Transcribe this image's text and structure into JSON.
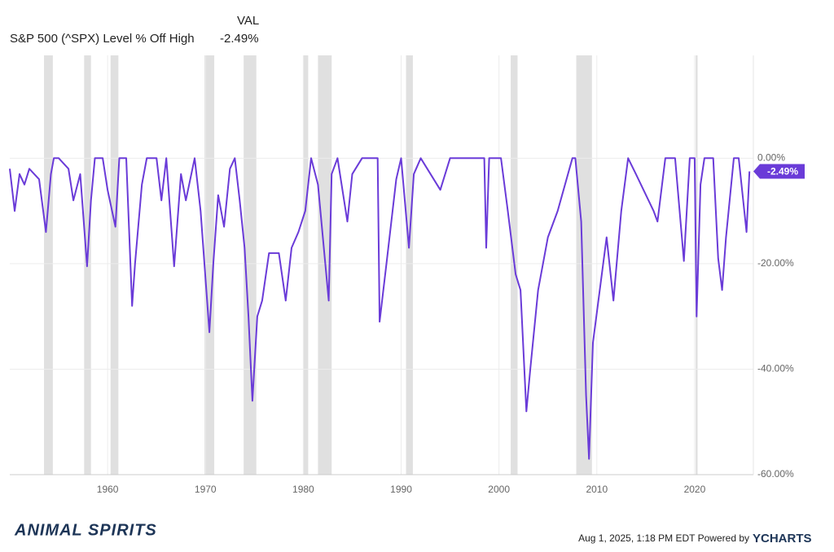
{
  "chart_data": {
    "type": "line",
    "header": "VAL",
    "current": {
      "value": -2.49,
      "label": "-2.49%"
    },
    "xlim": [
      1950,
      2026
    ],
    "ylim": [
      -60,
      19.5
    ],
    "xticks": [
      1960,
      1970,
      1980,
      1990,
      2000,
      2010,
      2020
    ],
    "yticks": [
      {
        "value": 0,
        "label": "0.00%"
      },
      {
        "value": -20,
        "label": "-20.00%"
      },
      {
        "value": -40,
        "label": "-40.00%"
      },
      {
        "value": -60,
        "label": "-60.00%"
      }
    ],
    "grid": true,
    "recession_color": "#e0e0e0",
    "recessions": [
      [
        1953.5,
        1954.4
      ],
      [
        1957.6,
        1958.3
      ],
      [
        1960.3,
        1961.1
      ],
      [
        1969.9,
        1970.9
      ],
      [
        1973.9,
        1975.2
      ],
      [
        1980.0,
        1980.5
      ],
      [
        1981.5,
        1982.9
      ],
      [
        1990.5,
        1991.2
      ],
      [
        2001.2,
        2001.9
      ],
      [
        2007.9,
        2009.5
      ],
      [
        2020.1,
        2020.3
      ]
    ],
    "series": [
      {
        "name": "S&P 500 (^SPX) Level % Off High",
        "color": "#6a3bd8",
        "x": [
          1950,
          1950.5,
          1951,
          1951.5,
          1952,
          1953,
          1953.7,
          1954.2,
          1954.5,
          1955,
          1956,
          1956.5,
          1957.2,
          1957.9,
          1958.3,
          1958.7,
          1959.5,
          1960,
          1960.8,
          1961.2,
          1961.9,
          1962.5,
          1962.8,
          1963.5,
          1964,
          1965,
          1965.5,
          1966,
          1966.8,
          1967.5,
          1968,
          1968.9,
          1969.5,
          1970.4,
          1970.8,
          1971.3,
          1971.9,
          1972.5,
          1973,
          1973.5,
          1974,
          1974.4,
          1974.8,
          1975.3,
          1975.8,
          1976.5,
          1977.5,
          1978.2,
          1978.8,
          1979.5,
          1980.2,
          1980.8,
          1981.5,
          1982.6,
          1982.9,
          1983.5,
          1984.5,
          1985,
          1986,
          1987.6,
          1987.8,
          1988.5,
          1989.5,
          1990,
          1990.8,
          1991.3,
          1992,
          1994,
          1995,
          1998.5,
          1998.7,
          1999,
          2000.2,
          2000.9,
          2001.7,
          2002.2,
          2002.8,
          2003.2,
          2004,
          2005,
          2006,
          2007.5,
          2007.8,
          2008.4,
          2008.9,
          2009.2,
          2009.6,
          2010.3,
          2011,
          2011.7,
          2012.5,
          2013.2,
          2014,
          2015.8,
          2016.2,
          2017,
          2018,
          2018.9,
          2019.5,
          2020,
          2020.2,
          2020.6,
          2021,
          2021.9,
          2022.4,
          2022.8,
          2023.2,
          2024,
          2024.5,
          2025.3,
          2025.6
        ],
        "values": [
          -2,
          -10,
          -3,
          -5,
          -2,
          -4,
          -14,
          -3,
          0,
          0,
          -2,
          -8,
          -3,
          -20.5,
          -8,
          0,
          0,
          -6,
          -13,
          0,
          0,
          -28,
          -20,
          -5,
          0,
          0,
          -8,
          0,
          -20.5,
          -3,
          -8,
          0,
          -10,
          -33,
          -20,
          -7,
          -13,
          -2,
          0,
          -8,
          -17,
          -30,
          -46,
          -30,
          -27,
          -18,
          -18,
          -27,
          -17,
          -14,
          -10,
          0,
          -5,
          -27,
          -3,
          0,
          -12,
          -3,
          0,
          0,
          -31,
          -20,
          -4,
          0,
          -17,
          -3,
          0,
          -6,
          0,
          0,
          -17,
          0,
          0,
          -10,
          -22,
          -25,
          -48,
          -40,
          -25,
          -15,
          -10,
          0,
          0,
          -12,
          -45,
          -57,
          -35,
          -25,
          -15,
          -27,
          -10,
          0,
          -3,
          -10,
          -12,
          0,
          0,
          -19.5,
          0,
          0,
          -30,
          -5,
          0,
          0,
          -19,
          -25,
          -15,
          0,
          0,
          -14,
          -2.49
        ]
      }
    ],
    "footer": {
      "brand": "ANIMAL SPIRITS",
      "timestamp": "Aug 1, 2025, 1:18 PM EDT Powered by",
      "logo": "YCHARTS"
    }
  }
}
